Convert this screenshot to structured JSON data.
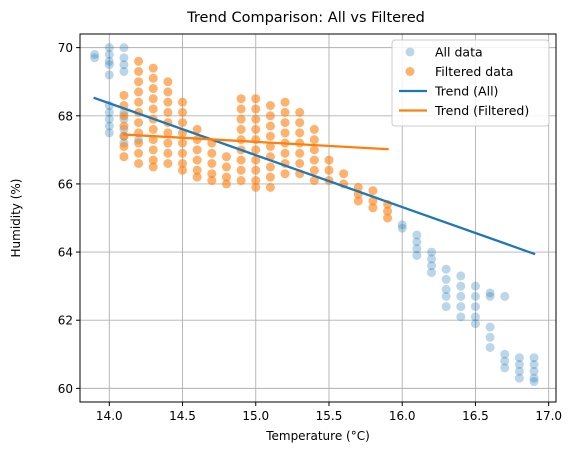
{
  "chart_data": {
    "type": "scatter",
    "title": "Trend Comparison: All vs Filtered",
    "xlabel": "Temperature (°C)",
    "ylabel": "Humidity (%)",
    "xlim": [
      13.8,
      17.05
    ],
    "ylim": [
      59.6,
      70.4
    ],
    "xticks": [
      14.0,
      14.5,
      15.0,
      15.5,
      16.0,
      16.5,
      17.0
    ],
    "xtick_labels": [
      "14.0",
      "14.5",
      "15.0",
      "15.5",
      "16.0",
      "16.5",
      "17.0"
    ],
    "yticks": [
      60,
      62,
      64,
      66,
      68,
      70
    ],
    "ytick_labels": [
      "60",
      "62",
      "64",
      "66",
      "68",
      "70"
    ],
    "grid": true,
    "legend_position": "top-right",
    "colors": {
      "all": "#1f77b4",
      "filtered": "#ff7f0e"
    },
    "legend": [
      {
        "label": "All data",
        "kind": "marker",
        "color": "#1f77b4",
        "opacity": 0.3
      },
      {
        "label": "Filtered data",
        "kind": "marker",
        "color": "#ff7f0e",
        "opacity": 0.6
      },
      {
        "label": "Trend (All)",
        "kind": "line",
        "color": "#1f77b4"
      },
      {
        "label": "Trend (Filtered)",
        "kind": "line",
        "color": "#ff7f0e"
      }
    ],
    "series": [
      {
        "name": "All data",
        "kind": "scatter",
        "color": "#1f77b4",
        "opacity": 0.3,
        "points": [
          {
            "x": 13.9,
            "y": 69.7
          },
          {
            "x": 13.9,
            "y": 69.8
          },
          {
            "x": 14.0,
            "y": 70.0
          },
          {
            "x": 14.0,
            "y": 69.8
          },
          {
            "x": 14.0,
            "y": 69.6
          },
          {
            "x": 14.0,
            "y": 69.5
          },
          {
            "x": 14.0,
            "y": 69.2
          },
          {
            "x": 14.0,
            "y": 68.3
          },
          {
            "x": 14.0,
            "y": 68.1
          },
          {
            "x": 14.0,
            "y": 67.9
          },
          {
            "x": 14.0,
            "y": 67.7
          },
          {
            "x": 14.0,
            "y": 67.5
          },
          {
            "x": 14.1,
            "y": 70.0
          },
          {
            "x": 14.1,
            "y": 69.7
          },
          {
            "x": 14.1,
            "y": 69.5
          },
          {
            "x": 14.1,
            "y": 69.3
          },
          {
            "x": 14.1,
            "y": 68.1
          },
          {
            "x": 14.1,
            "y": 67.9
          },
          {
            "x": 14.1,
            "y": 67.6
          },
          {
            "x": 14.1,
            "y": 67.4
          },
          {
            "x": 14.1,
            "y": 67.2
          },
          {
            "x": 14.2,
            "y": 67.3
          },
          {
            "x": 16.0,
            "y": 64.8
          },
          {
            "x": 16.0,
            "y": 64.7
          },
          {
            "x": 16.1,
            "y": 64.5
          },
          {
            "x": 16.1,
            "y": 64.3
          },
          {
            "x": 16.1,
            "y": 64.1
          },
          {
            "x": 16.1,
            "y": 63.9
          },
          {
            "x": 16.2,
            "y": 64.0
          },
          {
            "x": 16.2,
            "y": 63.8
          },
          {
            "x": 16.2,
            "y": 63.6
          },
          {
            "x": 16.2,
            "y": 63.4
          },
          {
            "x": 16.3,
            "y": 63.5
          },
          {
            "x": 16.3,
            "y": 63.2
          },
          {
            "x": 16.3,
            "y": 62.9
          },
          {
            "x": 16.3,
            "y": 62.7
          },
          {
            "x": 16.3,
            "y": 62.4
          },
          {
            "x": 16.4,
            "y": 63.3
          },
          {
            "x": 16.4,
            "y": 63.0
          },
          {
            "x": 16.4,
            "y": 62.7
          },
          {
            "x": 16.4,
            "y": 62.4
          },
          {
            "x": 16.4,
            "y": 62.1
          },
          {
            "x": 16.5,
            "y": 63.0
          },
          {
            "x": 16.5,
            "y": 62.7
          },
          {
            "x": 16.5,
            "y": 62.4
          },
          {
            "x": 16.5,
            "y": 62.1
          },
          {
            "x": 16.5,
            "y": 61.9
          },
          {
            "x": 16.6,
            "y": 62.8
          },
          {
            "x": 16.6,
            "y": 62.7
          },
          {
            "x": 16.6,
            "y": 61.8
          },
          {
            "x": 16.6,
            "y": 61.5
          },
          {
            "x": 16.6,
            "y": 61.2
          },
          {
            "x": 16.7,
            "y": 62.7
          },
          {
            "x": 16.7,
            "y": 61.0
          },
          {
            "x": 16.7,
            "y": 60.8
          },
          {
            "x": 16.7,
            "y": 60.6
          },
          {
            "x": 16.8,
            "y": 60.9
          },
          {
            "x": 16.8,
            "y": 60.7
          },
          {
            "x": 16.8,
            "y": 60.5
          },
          {
            "x": 16.8,
            "y": 60.3
          },
          {
            "x": 16.9,
            "y": 60.9
          },
          {
            "x": 16.9,
            "y": 60.7
          },
          {
            "x": 16.9,
            "y": 60.5
          },
          {
            "x": 16.9,
            "y": 60.3
          },
          {
            "x": 16.9,
            "y": 60.2
          }
        ]
      },
      {
        "name": "Filtered data",
        "kind": "scatter",
        "color": "#ff7f0e",
        "opacity": 0.6,
        "points": [
          {
            "x": 14.1,
            "y": 68.6
          },
          {
            "x": 14.1,
            "y": 68.3
          },
          {
            "x": 14.1,
            "y": 68.0
          },
          {
            "x": 14.1,
            "y": 67.7
          },
          {
            "x": 14.1,
            "y": 67.4
          },
          {
            "x": 14.1,
            "y": 67.1
          },
          {
            "x": 14.1,
            "y": 66.8
          },
          {
            "x": 14.2,
            "y": 69.6
          },
          {
            "x": 14.2,
            "y": 69.3
          },
          {
            "x": 14.2,
            "y": 69.0
          },
          {
            "x": 14.2,
            "y": 68.7
          },
          {
            "x": 14.2,
            "y": 68.4
          },
          {
            "x": 14.2,
            "y": 68.1
          },
          {
            "x": 14.2,
            "y": 67.8
          },
          {
            "x": 14.2,
            "y": 67.5
          },
          {
            "x": 14.2,
            "y": 67.2
          },
          {
            "x": 14.2,
            "y": 66.9
          },
          {
            "x": 14.2,
            "y": 66.6
          },
          {
            "x": 14.3,
            "y": 69.4
          },
          {
            "x": 14.3,
            "y": 69.1
          },
          {
            "x": 14.3,
            "y": 68.8
          },
          {
            "x": 14.3,
            "y": 68.5
          },
          {
            "x": 14.3,
            "y": 68.2
          },
          {
            "x": 14.3,
            "y": 67.9
          },
          {
            "x": 14.3,
            "y": 67.6
          },
          {
            "x": 14.3,
            "y": 67.3
          },
          {
            "x": 14.3,
            "y": 67.0
          },
          {
            "x": 14.3,
            "y": 66.7
          },
          {
            "x": 14.3,
            "y": 66.5
          },
          {
            "x": 14.4,
            "y": 69.0
          },
          {
            "x": 14.4,
            "y": 68.7
          },
          {
            "x": 14.4,
            "y": 68.4
          },
          {
            "x": 14.4,
            "y": 68.1
          },
          {
            "x": 14.4,
            "y": 67.8
          },
          {
            "x": 14.4,
            "y": 67.5
          },
          {
            "x": 14.4,
            "y": 67.2
          },
          {
            "x": 14.4,
            "y": 66.9
          },
          {
            "x": 14.4,
            "y": 66.6
          },
          {
            "x": 14.5,
            "y": 68.4
          },
          {
            "x": 14.5,
            "y": 68.1
          },
          {
            "x": 14.5,
            "y": 67.8
          },
          {
            "x": 14.5,
            "y": 67.5
          },
          {
            "x": 14.5,
            "y": 67.2
          },
          {
            "x": 14.5,
            "y": 66.9
          },
          {
            "x": 14.5,
            "y": 66.6
          },
          {
            "x": 14.5,
            "y": 66.4
          },
          {
            "x": 14.6,
            "y": 67.6
          },
          {
            "x": 14.6,
            "y": 67.3
          },
          {
            "x": 14.6,
            "y": 67.0
          },
          {
            "x": 14.6,
            "y": 66.7
          },
          {
            "x": 14.6,
            "y": 66.4
          },
          {
            "x": 14.6,
            "y": 66.2
          },
          {
            "x": 14.7,
            "y": 67.2
          },
          {
            "x": 14.7,
            "y": 66.9
          },
          {
            "x": 14.7,
            "y": 66.6
          },
          {
            "x": 14.7,
            "y": 66.3
          },
          {
            "x": 14.7,
            "y": 66.1
          },
          {
            "x": 14.8,
            "y": 66.8
          },
          {
            "x": 14.8,
            "y": 66.5
          },
          {
            "x": 14.8,
            "y": 66.2
          },
          {
            "x": 14.8,
            "y": 66.0
          },
          {
            "x": 14.9,
            "y": 68.5
          },
          {
            "x": 14.9,
            "y": 68.2
          },
          {
            "x": 14.9,
            "y": 67.9
          },
          {
            "x": 14.9,
            "y": 67.6
          },
          {
            "x": 14.9,
            "y": 67.3
          },
          {
            "x": 14.9,
            "y": 67.0
          },
          {
            "x": 14.9,
            "y": 66.7
          },
          {
            "x": 14.9,
            "y": 66.4
          },
          {
            "x": 14.9,
            "y": 66.1
          },
          {
            "x": 15.0,
            "y": 68.5
          },
          {
            "x": 15.0,
            "y": 68.2
          },
          {
            "x": 15.0,
            "y": 67.9
          },
          {
            "x": 15.0,
            "y": 67.6
          },
          {
            "x": 15.0,
            "y": 67.3
          },
          {
            "x": 15.0,
            "y": 67.0
          },
          {
            "x": 15.0,
            "y": 66.7
          },
          {
            "x": 15.0,
            "y": 66.4
          },
          {
            "x": 15.0,
            "y": 66.1
          },
          {
            "x": 15.0,
            "y": 65.9
          },
          {
            "x": 15.1,
            "y": 68.3
          },
          {
            "x": 15.1,
            "y": 68.0
          },
          {
            "x": 15.1,
            "y": 67.7
          },
          {
            "x": 15.1,
            "y": 67.4
          },
          {
            "x": 15.1,
            "y": 67.1
          },
          {
            "x": 15.1,
            "y": 66.8
          },
          {
            "x": 15.1,
            "y": 66.5
          },
          {
            "x": 15.1,
            "y": 66.2
          },
          {
            "x": 15.1,
            "y": 65.9
          },
          {
            "x": 15.2,
            "y": 68.4
          },
          {
            "x": 15.2,
            "y": 68.1
          },
          {
            "x": 15.2,
            "y": 67.8
          },
          {
            "x": 15.2,
            "y": 67.5
          },
          {
            "x": 15.2,
            "y": 67.2
          },
          {
            "x": 15.2,
            "y": 66.9
          },
          {
            "x": 15.2,
            "y": 66.6
          },
          {
            "x": 15.2,
            "y": 66.3
          },
          {
            "x": 15.3,
            "y": 68.1
          },
          {
            "x": 15.3,
            "y": 67.8
          },
          {
            "x": 15.3,
            "y": 67.5
          },
          {
            "x": 15.3,
            "y": 67.2
          },
          {
            "x": 15.3,
            "y": 66.9
          },
          {
            "x": 15.3,
            "y": 66.6
          },
          {
            "x": 15.3,
            "y": 66.3
          },
          {
            "x": 15.4,
            "y": 67.6
          },
          {
            "x": 15.4,
            "y": 67.3
          },
          {
            "x": 15.4,
            "y": 67.0
          },
          {
            "x": 15.4,
            "y": 66.7
          },
          {
            "x": 15.4,
            "y": 66.4
          },
          {
            "x": 15.4,
            "y": 66.1
          },
          {
            "x": 15.5,
            "y": 66.7
          },
          {
            "x": 15.5,
            "y": 66.4
          },
          {
            "x": 15.5,
            "y": 66.1
          },
          {
            "x": 15.6,
            "y": 66.3
          },
          {
            "x": 15.6,
            "y": 66.0
          },
          {
            "x": 15.7,
            "y": 65.9
          },
          {
            "x": 15.7,
            "y": 65.7
          },
          {
            "x": 15.7,
            "y": 65.5
          },
          {
            "x": 15.8,
            "y": 65.8
          },
          {
            "x": 15.8,
            "y": 65.5
          },
          {
            "x": 15.8,
            "y": 65.3
          },
          {
            "x": 15.9,
            "y": 65.4
          },
          {
            "x": 15.9,
            "y": 65.2
          },
          {
            "x": 15.9,
            "y": 65.0
          }
        ]
      },
      {
        "name": "Trend (All)",
        "kind": "line",
        "color": "#1f77b4",
        "points": [
          {
            "x": 13.9,
            "y": 68.52
          },
          {
            "x": 16.9,
            "y": 63.95
          }
        ]
      },
      {
        "name": "Trend (Filtered)",
        "kind": "line",
        "color": "#ff7f0e",
        "points": [
          {
            "x": 14.1,
            "y": 67.45
          },
          {
            "x": 15.9,
            "y": 67.02
          }
        ]
      }
    ]
  }
}
